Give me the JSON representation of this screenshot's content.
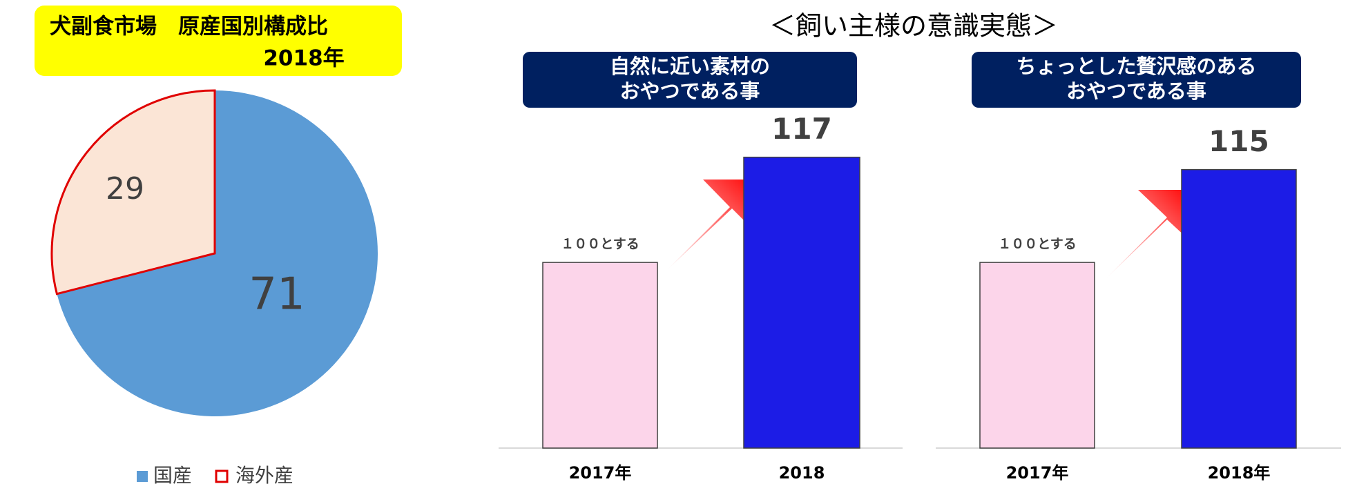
{
  "heading": "＜飼い主様の意識実態＞",
  "chart_data": [
    {
      "type": "pie",
      "title": "犬副食市場　原産国別構成比",
      "subtitle": "2018年",
      "categories": [
        "国産",
        "海外産"
      ],
      "values": [
        71,
        29
      ],
      "colors": [
        "#5b9bd5",
        "#fbe5d6"
      ]
    },
    {
      "type": "bar",
      "title": [
        "自然に近い素材の",
        "おやつである事"
      ],
      "categories": [
        "2017年",
        "2018"
      ],
      "values": [
        100,
        117
      ],
      "value_labels": [
        "１００とする",
        "117"
      ],
      "colors": [
        "#fcd5ea",
        "#1c1ce6"
      ],
      "ylim": [
        70,
        125
      ]
    },
    {
      "type": "bar",
      "title": [
        "ちょっとした贅沢感のある",
        "おやつである事"
      ],
      "categories": [
        "2017年",
        "2018年"
      ],
      "values": [
        100,
        115
      ],
      "value_labels": [
        "１００とする",
        "115"
      ],
      "colors": [
        "#fcd5ea",
        "#1c1ce6"
      ],
      "ylim": [
        70,
        125
      ]
    }
  ]
}
